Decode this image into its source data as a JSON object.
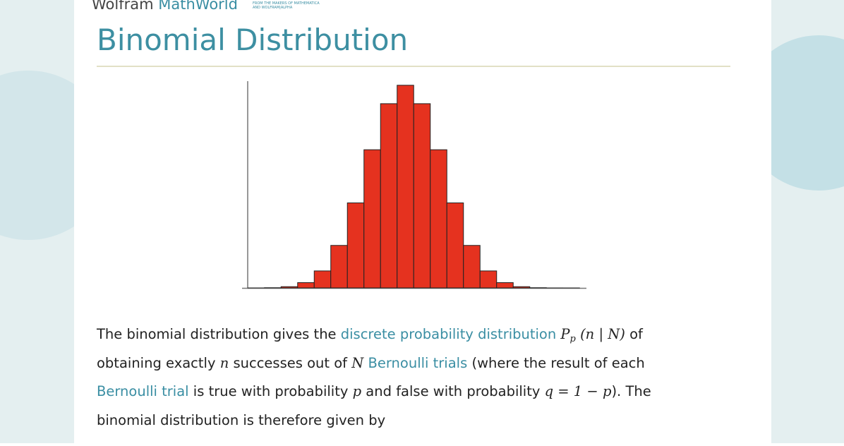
{
  "header": {
    "brand": "Wolfram",
    "brand_accent": "MathWorld",
    "tagline": [
      "FROM THE MAKERS OF MATHEMATICA",
      "AND WOLFRAM|ALPHA"
    ]
  },
  "title": "Binomial Distribution",
  "chart_data": {
    "type": "histogram",
    "bins": [
      0.5,
      1.5,
      2.5,
      3.5,
      4.5,
      5.5,
      6.5,
      7.5,
      8.5,
      9.5,
      10.5,
      11.5,
      12.5,
      13.5,
      14.5,
      15.5,
      16.5,
      17.5,
      18.5,
      19.5,
      20.5
    ],
    "values": [
      1.9e-05,
      0.000181,
      0.001087,
      0.004621,
      0.014786,
      0.036964,
      0.073929,
      0.120134,
      0.160179,
      0.176197,
      0.160179,
      0.120134,
      0.073929,
      0.036964,
      0.014786,
      0.004621,
      0.001087,
      0.000181,
      1.9e-05,
      1e-06
    ],
    "xlim": [
      0.5,
      21
    ],
    "ylim": [
      0,
      0.18
    ],
    "color": "#e5321f"
  },
  "paragraph": [
    [
      {
        "kind": "text",
        "text": "The binomial distribution gives the "
      },
      {
        "kind": "link",
        "text": "discrete probability distribution"
      },
      {
        "kind": "text",
        "text": " "
      },
      {
        "kind": "math",
        "text": "P"
      },
      {
        "kind": "sub",
        "text": "p"
      },
      {
        "kind": "math",
        "text": " (n | N)"
      },
      {
        "kind": "text",
        "text": " of"
      }
    ],
    [
      {
        "kind": "text",
        "text": "obtaining exactly "
      },
      {
        "kind": "math",
        "text": "n"
      },
      {
        "kind": "text",
        "text": " successes out of "
      },
      {
        "kind": "math",
        "text": "N"
      },
      {
        "kind": "text",
        "text": " "
      },
      {
        "kind": "link",
        "text": "Bernoulli trials"
      },
      {
        "kind": "text",
        "text": " (where the result of each"
      }
    ],
    [
      {
        "kind": "link",
        "text": "Bernoulli trial"
      },
      {
        "kind": "text",
        "text": " is true with probability "
      },
      {
        "kind": "math",
        "text": "p"
      },
      {
        "kind": "text",
        "text": " and false with probability "
      },
      {
        "kind": "math",
        "text": "q = 1 − p"
      },
      {
        "kind": "text",
        "text": "). The"
      }
    ],
    [
      {
        "kind": "text",
        "text": "binomial distribution is therefore given by"
      }
    ]
  ]
}
